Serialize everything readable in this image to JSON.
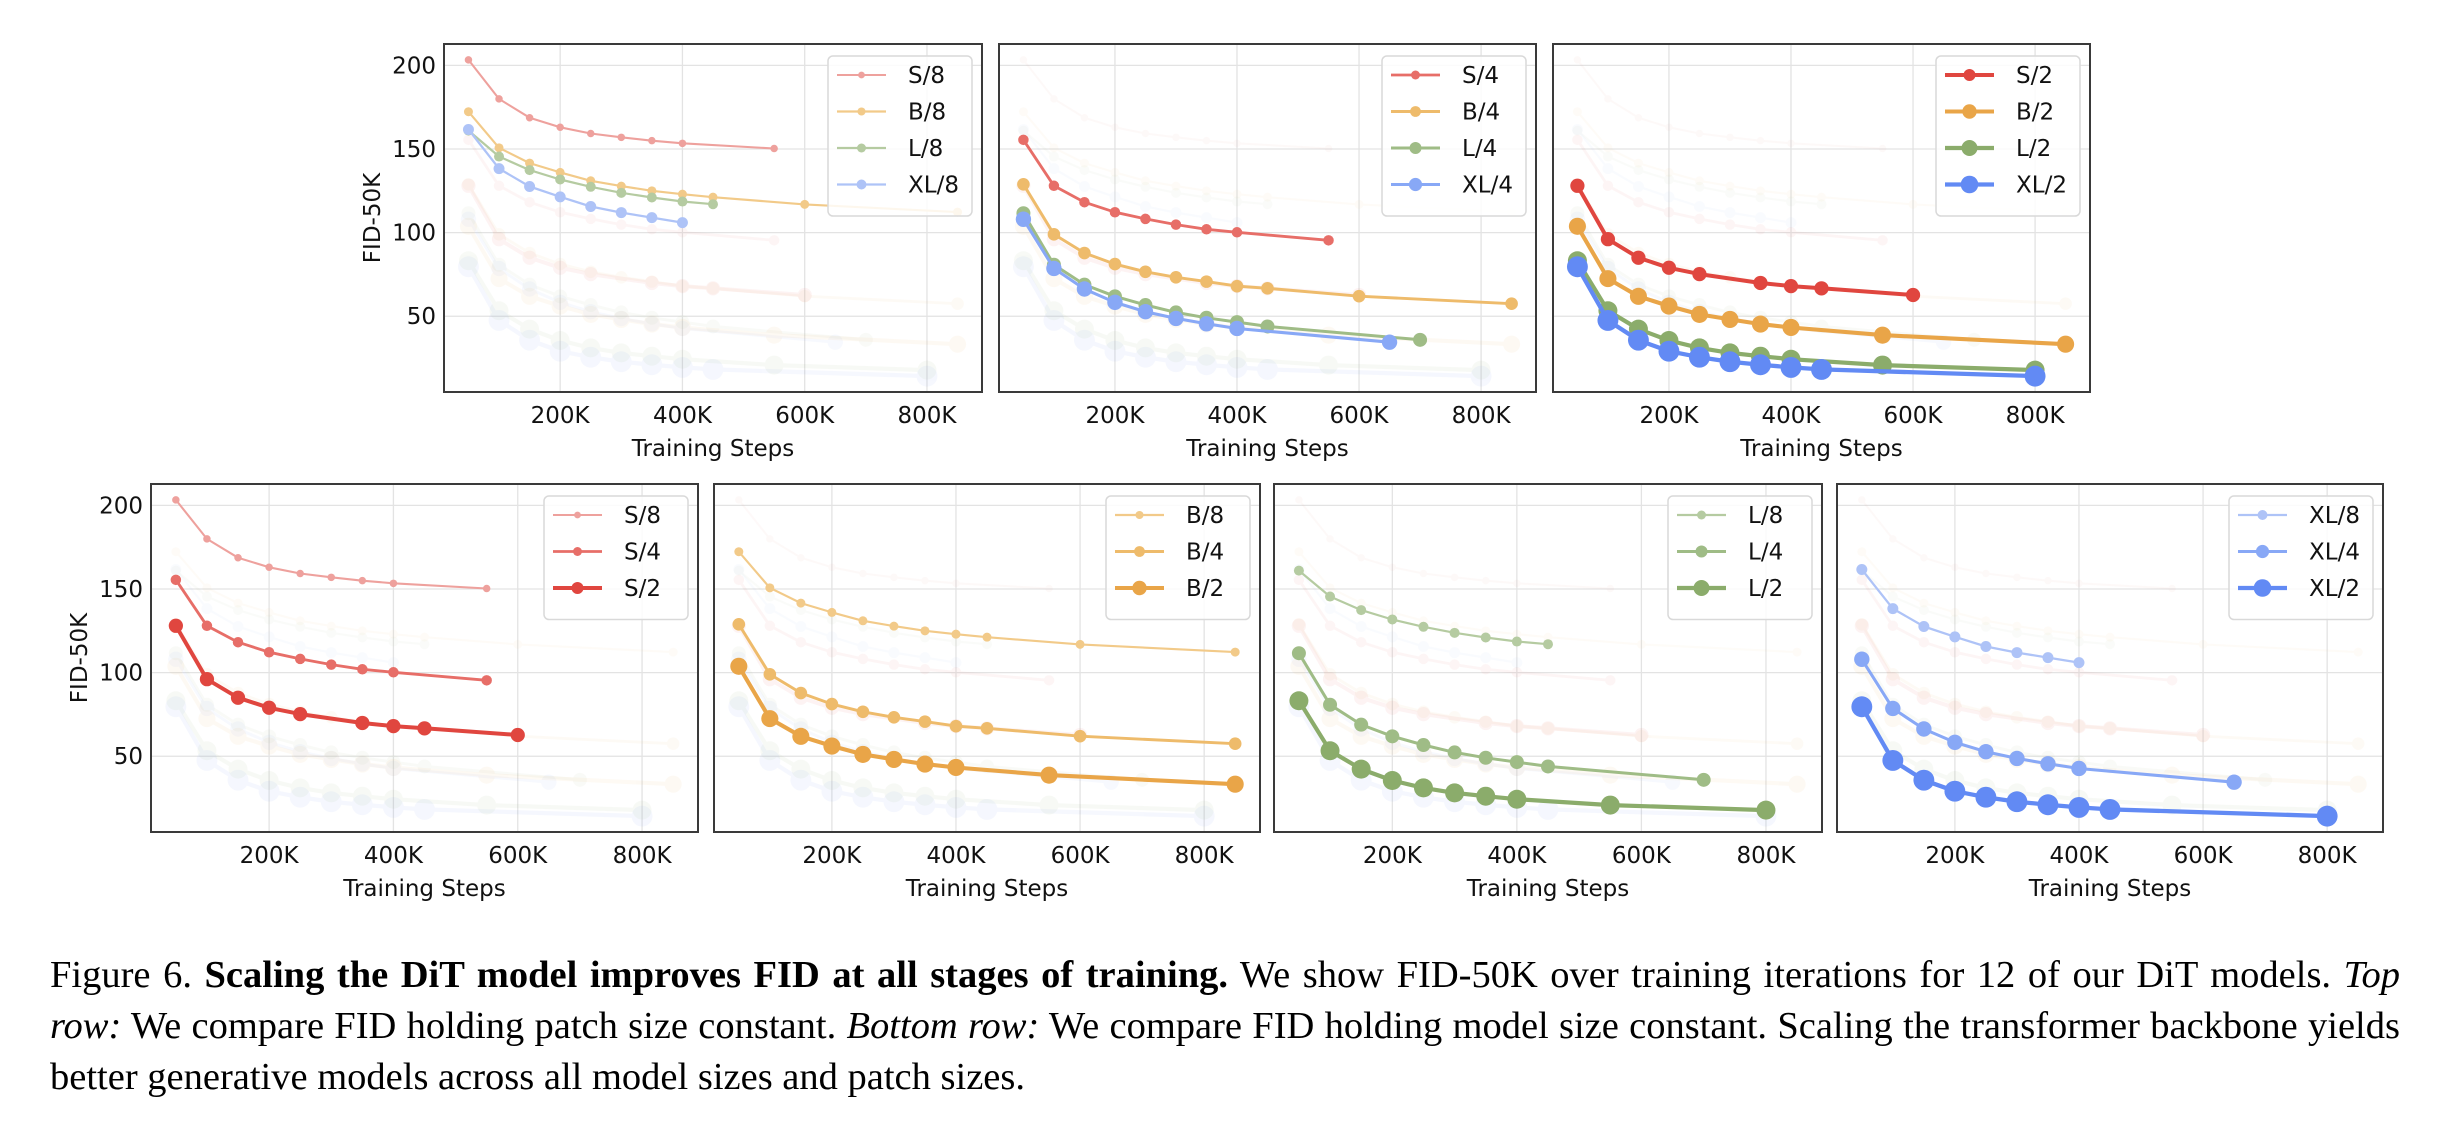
{
  "caption": {
    "label": "Figure 6.",
    "bold": "Scaling the DiT model improves FID at all stages of training.",
    "text1": "We show FID-50K over training iterations for 12 of our DiT models.",
    "italic1": "Top row:",
    "text2": "We compare FID holding patch size constant.",
    "italic2": "Bottom row:",
    "text3": "We compare FID holding model size constant. Scaling the transformer backbone yields better generative models across all model sizes and patch sizes."
  },
  "chart_data": {
    "type": "line",
    "xlabel": "Training Steps",
    "ylabel": "FID-50K",
    "xticks": [
      200000,
      400000,
      600000,
      800000
    ],
    "xtick_labels": [
      "200K",
      "400K",
      "600K",
      "800K"
    ],
    "yticks": [
      50,
      100,
      150,
      200
    ],
    "ytick_labels": [
      "50",
      "100",
      "150",
      "200"
    ],
    "xlim": [
      10000,
      890000
    ],
    "ylim": [
      4.7,
      212.8
    ],
    "grid": true,
    "legend_position": "top-right",
    "background_series_opacity": 0.06,
    "series": {
      "S/8": {
        "color": "#eea19d",
        "x": [
          50000,
          100000,
          150000,
          200000,
          250000,
          300000,
          350000,
          400000,
          550000
        ],
        "y": [
          203.3,
          180.0,
          168.7,
          163.0,
          159.3,
          157.0,
          155.0,
          153.4,
          150.3
        ]
      },
      "B/8": {
        "color": "#f2ca89",
        "x": [
          50000,
          100000,
          150000,
          200000,
          250000,
          300000,
          350000,
          400000,
          450000,
          600000,
          850000
        ],
        "y": [
          172.3,
          150.7,
          141.6,
          136.0,
          131.0,
          127.8,
          125.0,
          123.0,
          121.2,
          116.9,
          112.3
        ]
      },
      "L/8": {
        "color": "#b5cba1",
        "x": [
          50000,
          100000,
          150000,
          200000,
          250000,
          300000,
          350000,
          400000,
          450000
        ],
        "y": [
          161.0,
          145.5,
          137.4,
          131.8,
          127.4,
          123.8,
          121.0,
          118.6,
          117.0
        ]
      },
      "XL/8": {
        "color": "#aec3f7",
        "x": [
          50000,
          100000,
          150000,
          200000,
          250000,
          300000,
          350000,
          400000
        ],
        "y": [
          161.7,
          138.3,
          127.6,
          121.4,
          115.6,
          112.0,
          109.0,
          106.0
        ]
      },
      "S/4": {
        "color": "#e76e68",
        "x": [
          50000,
          100000,
          150000,
          200000,
          250000,
          300000,
          350000,
          400000,
          550000
        ],
        "y": [
          155.5,
          128.0,
          118.2,
          112.2,
          108.2,
          104.8,
          102.0,
          100.2,
          95.4
        ]
      },
      "B/4": {
        "color": "#eebb6b",
        "x": [
          50000,
          100000,
          150000,
          200000,
          250000,
          300000,
          350000,
          400000,
          450000,
          600000,
          850000
        ],
        "y": [
          128.9,
          99.0,
          87.8,
          81.2,
          76.6,
          73.3,
          70.7,
          68.0,
          66.7,
          62.0,
          57.5
        ]
      },
      "L/4": {
        "color": "#9fbc86",
        "x": [
          50000,
          100000,
          150000,
          200000,
          250000,
          300000,
          350000,
          400000,
          450000,
          700000
        ],
        "y": [
          111.6,
          80.8,
          68.9,
          61.9,
          56.7,
          52.3,
          49.1,
          46.5,
          43.9,
          35.9
        ]
      },
      "XL/4": {
        "color": "#88a8f6",
        "x": [
          50000,
          100000,
          150000,
          200000,
          250000,
          300000,
          350000,
          400000,
          650000
        ],
        "y": [
          108.0,
          78.6,
          66.3,
          58.3,
          52.7,
          48.7,
          45.5,
          42.7,
          34.5
        ]
      },
      "S/2": {
        "color": "#e0463f",
        "x": [
          50000,
          100000,
          150000,
          200000,
          250000,
          350000,
          400000,
          450000,
          600000
        ],
        "y": [
          128.0,
          96.1,
          85.0,
          79.0,
          75.2,
          69.9,
          68.0,
          66.7,
          62.7
        ]
      },
      "B/2": {
        "color": "#e9a548",
        "x": [
          50000,
          100000,
          150000,
          200000,
          250000,
          300000,
          350000,
          400000,
          550000,
          850000
        ],
        "y": [
          103.8,
          72.5,
          61.9,
          56.1,
          51.1,
          48.1,
          45.3,
          43.3,
          38.7,
          33.3
        ]
      },
      "L/2": {
        "color": "#8bac6b",
        "x": [
          50000,
          100000,
          150000,
          200000,
          250000,
          300000,
          350000,
          400000,
          550000,
          800000
        ],
        "y": [
          83.2,
          53.3,
          42.3,
          35.5,
          31.1,
          28.1,
          26.1,
          24.3,
          20.8,
          17.8
        ]
      },
      "XL/2": {
        "color": "#628af4",
        "x": [
          50000,
          100000,
          150000,
          200000,
          250000,
          300000,
          350000,
          400000,
          450000,
          800000
        ],
        "y": [
          79.6,
          47.5,
          35.7,
          29.1,
          25.5,
          22.8,
          21.0,
          19.4,
          18.2,
          14.2
        ]
      }
    },
    "panels": [
      {
        "id": "top-patch-8",
        "row": "top",
        "highlight": [
          "S/8",
          "B/8",
          "L/8",
          "XL/8"
        ],
        "show_ylabel": true
      },
      {
        "id": "top-patch-4",
        "row": "top",
        "highlight": [
          "S/4",
          "B/4",
          "L/4",
          "XL/4"
        ],
        "show_ylabel": false
      },
      {
        "id": "top-patch-2",
        "row": "top",
        "highlight": [
          "S/2",
          "B/2",
          "L/2",
          "XL/2"
        ],
        "show_ylabel": false
      },
      {
        "id": "bottom-model-S",
        "row": "bottom",
        "highlight": [
          "S/8",
          "S/4",
          "S/2"
        ],
        "show_ylabel": true
      },
      {
        "id": "bottom-model-B",
        "row": "bottom",
        "highlight": [
          "B/8",
          "B/4",
          "B/2"
        ],
        "show_ylabel": false
      },
      {
        "id": "bottom-model-L",
        "row": "bottom",
        "highlight": [
          "L/8",
          "L/4",
          "L/2"
        ],
        "show_ylabel": false
      },
      {
        "id": "bottom-model-XL",
        "row": "bottom",
        "highlight": [
          "XL/8",
          "XL/4",
          "XL/2"
        ],
        "show_ylabel": false
      }
    ]
  }
}
